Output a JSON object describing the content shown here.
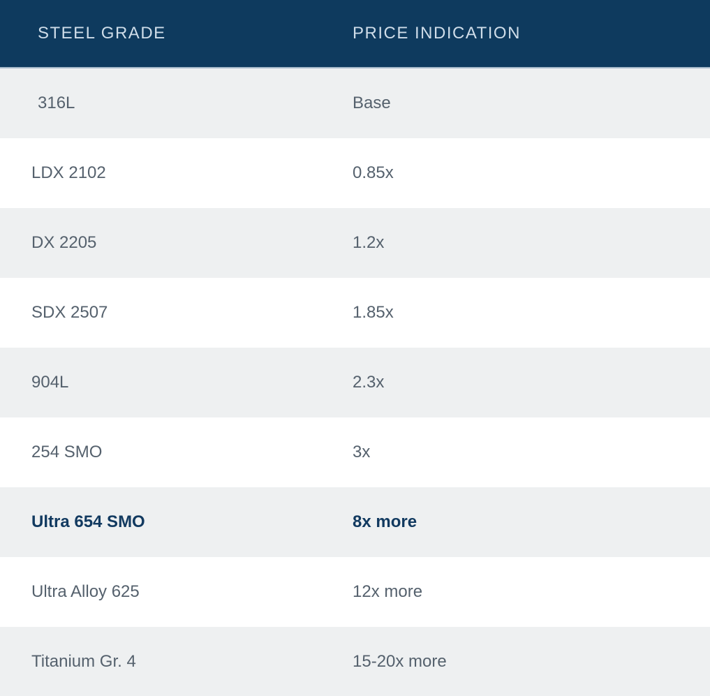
{
  "colors": {
    "navy": "#0e3a5e",
    "header_text": "#cfdde9",
    "header_border": "#a6b9ca",
    "row_gray": "#eef0f1",
    "row_white": "#ffffff",
    "body_text": "#55616d",
    "emphasis_text": "#123a60"
  },
  "table": {
    "columns": [
      {
        "label": "STEEL GRADE"
      },
      {
        "label": "PRICE INDICATION"
      }
    ],
    "rows": [
      {
        "grade": "316L",
        "price": "Base",
        "emphasis": false
      },
      {
        "grade": "LDX 2102",
        "price": "0.85x",
        "emphasis": false
      },
      {
        "grade": "DX 2205",
        "price": "1.2x",
        "emphasis": false
      },
      {
        "grade": "SDX 2507",
        "price": "1.85x",
        "emphasis": false
      },
      {
        "grade": "904L",
        "price": "2.3x",
        "emphasis": false
      },
      {
        "grade": "254 SMO",
        "price": "3x",
        "emphasis": false
      },
      {
        "grade": "Ultra 654 SMO",
        "price": "8x more",
        "emphasis": true
      },
      {
        "grade": "Ultra Alloy 625",
        "price": "12x more",
        "emphasis": false
      },
      {
        "grade": "Titanium Gr. 4",
        "price": "15-20x more",
        "emphasis": false
      }
    ]
  }
}
